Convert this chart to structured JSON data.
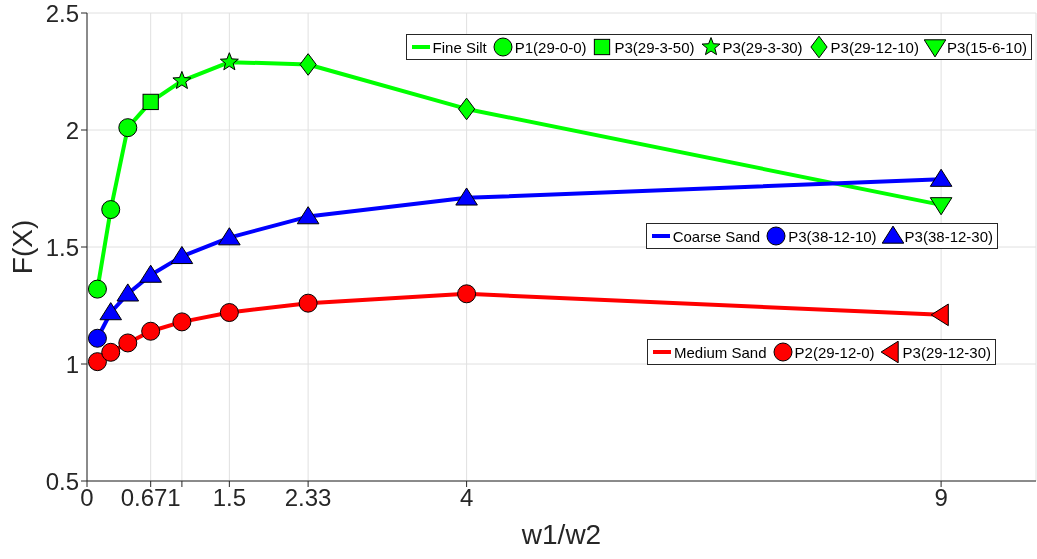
{
  "chart_data": {
    "type": "line",
    "xlabel": "w1/w2",
    "ylabel": "F(X)",
    "xlim": [
      0,
      10
    ],
    "ylim": [
      0.5,
      2.5
    ],
    "xticks": [
      0,
      0.671,
      {
        "value": 1,
        "label": null
      },
      1.5,
      2.33,
      4,
      9
    ],
    "yticks": [
      0.5,
      1,
      1.5,
      2,
      2.5
    ],
    "grid": true,
    "legend": "right",
    "line_style": "solid",
    "series": [
      {
        "name": "Fine Silt",
        "color": "#00ff00",
        "marker": "none",
        "x": [
          0.11,
          0.25,
          0.43,
          0.671,
          1,
          1.5,
          2.33,
          4,
          9
        ],
        "values": [
          1.32,
          1.66,
          2.01,
          2.12,
          2.21,
          2.29,
          2.28,
          2.09,
          1.68
        ]
      },
      {
        "name": "P1(29-0-0)",
        "type": "scatter",
        "color": "#00ff00",
        "marker": "circle",
        "x": [
          0.11,
          0.25,
          0.43
        ],
        "values": [
          1.32,
          1.66,
          2.01
        ]
      },
      {
        "name": "P3(29-3-50)",
        "type": "scatter",
        "color": "#00ff00",
        "marker": "square",
        "x": [
          0.671
        ],
        "values": [
          2.12
        ]
      },
      {
        "name": "P3(29-3-30)",
        "type": "scatter",
        "color": "#00ff00",
        "marker": "star",
        "x": [
          1,
          1.5
        ],
        "values": [
          2.21,
          2.29
        ]
      },
      {
        "name": "P3(29-12-10)",
        "type": "scatter",
        "color": "#00ff00",
        "marker": "diamond",
        "x": [
          2.33,
          4
        ],
        "values": [
          2.28,
          2.09
        ]
      },
      {
        "name": "P3(15-6-10)",
        "type": "scatter",
        "color": "#00ff00",
        "marker": "triangle-down",
        "x": [
          9
        ],
        "values": [
          1.68
        ]
      },
      {
        "name": "Coarse Sand",
        "color": "#0000ff",
        "marker": "none",
        "x": [
          0.11,
          0.25,
          0.43,
          0.671,
          1,
          1.5,
          2.33,
          4,
          9
        ],
        "values": [
          1.11,
          1.22,
          1.3,
          1.38,
          1.46,
          1.54,
          1.63,
          1.71,
          1.79
        ]
      },
      {
        "name": "P3(38-12-10)",
        "type": "scatter",
        "color": "#0000ff",
        "marker": "circle",
        "x": [
          0.11
        ],
        "values": [
          1.11
        ]
      },
      {
        "name": "P3(38-12-30)",
        "type": "scatter",
        "color": "#0000ff",
        "marker": "triangle",
        "x": [
          0.25,
          0.43,
          0.671,
          1,
          1.5,
          2.33,
          4,
          9
        ],
        "values": [
          1.22,
          1.3,
          1.38,
          1.46,
          1.54,
          1.63,
          1.71,
          1.79
        ]
      },
      {
        "name": "Medium Sand",
        "color": "#ff0000",
        "marker": "none",
        "x": [
          0.11,
          0.25,
          0.43,
          0.671,
          1,
          1.5,
          2.33,
          4,
          9
        ],
        "values": [
          1.01,
          1.05,
          1.09,
          1.14,
          1.18,
          1.22,
          1.26,
          1.3,
          1.21
        ]
      },
      {
        "name": "P2(29-12-0)",
        "type": "scatter",
        "color": "#ff0000",
        "marker": "circle",
        "x": [
          0.11,
          0.25,
          0.43,
          0.671,
          1,
          1.5,
          2.33,
          4
        ],
        "values": [
          1.01,
          1.05,
          1.09,
          1.14,
          1.18,
          1.22,
          1.26,
          1.3
        ]
      },
      {
        "name": "P3(29-12-30)",
        "type": "scatter",
        "color": "#ff0000",
        "marker": "triangle-left",
        "x": [
          9
        ],
        "values": [
          1.21
        ]
      }
    ]
  }
}
